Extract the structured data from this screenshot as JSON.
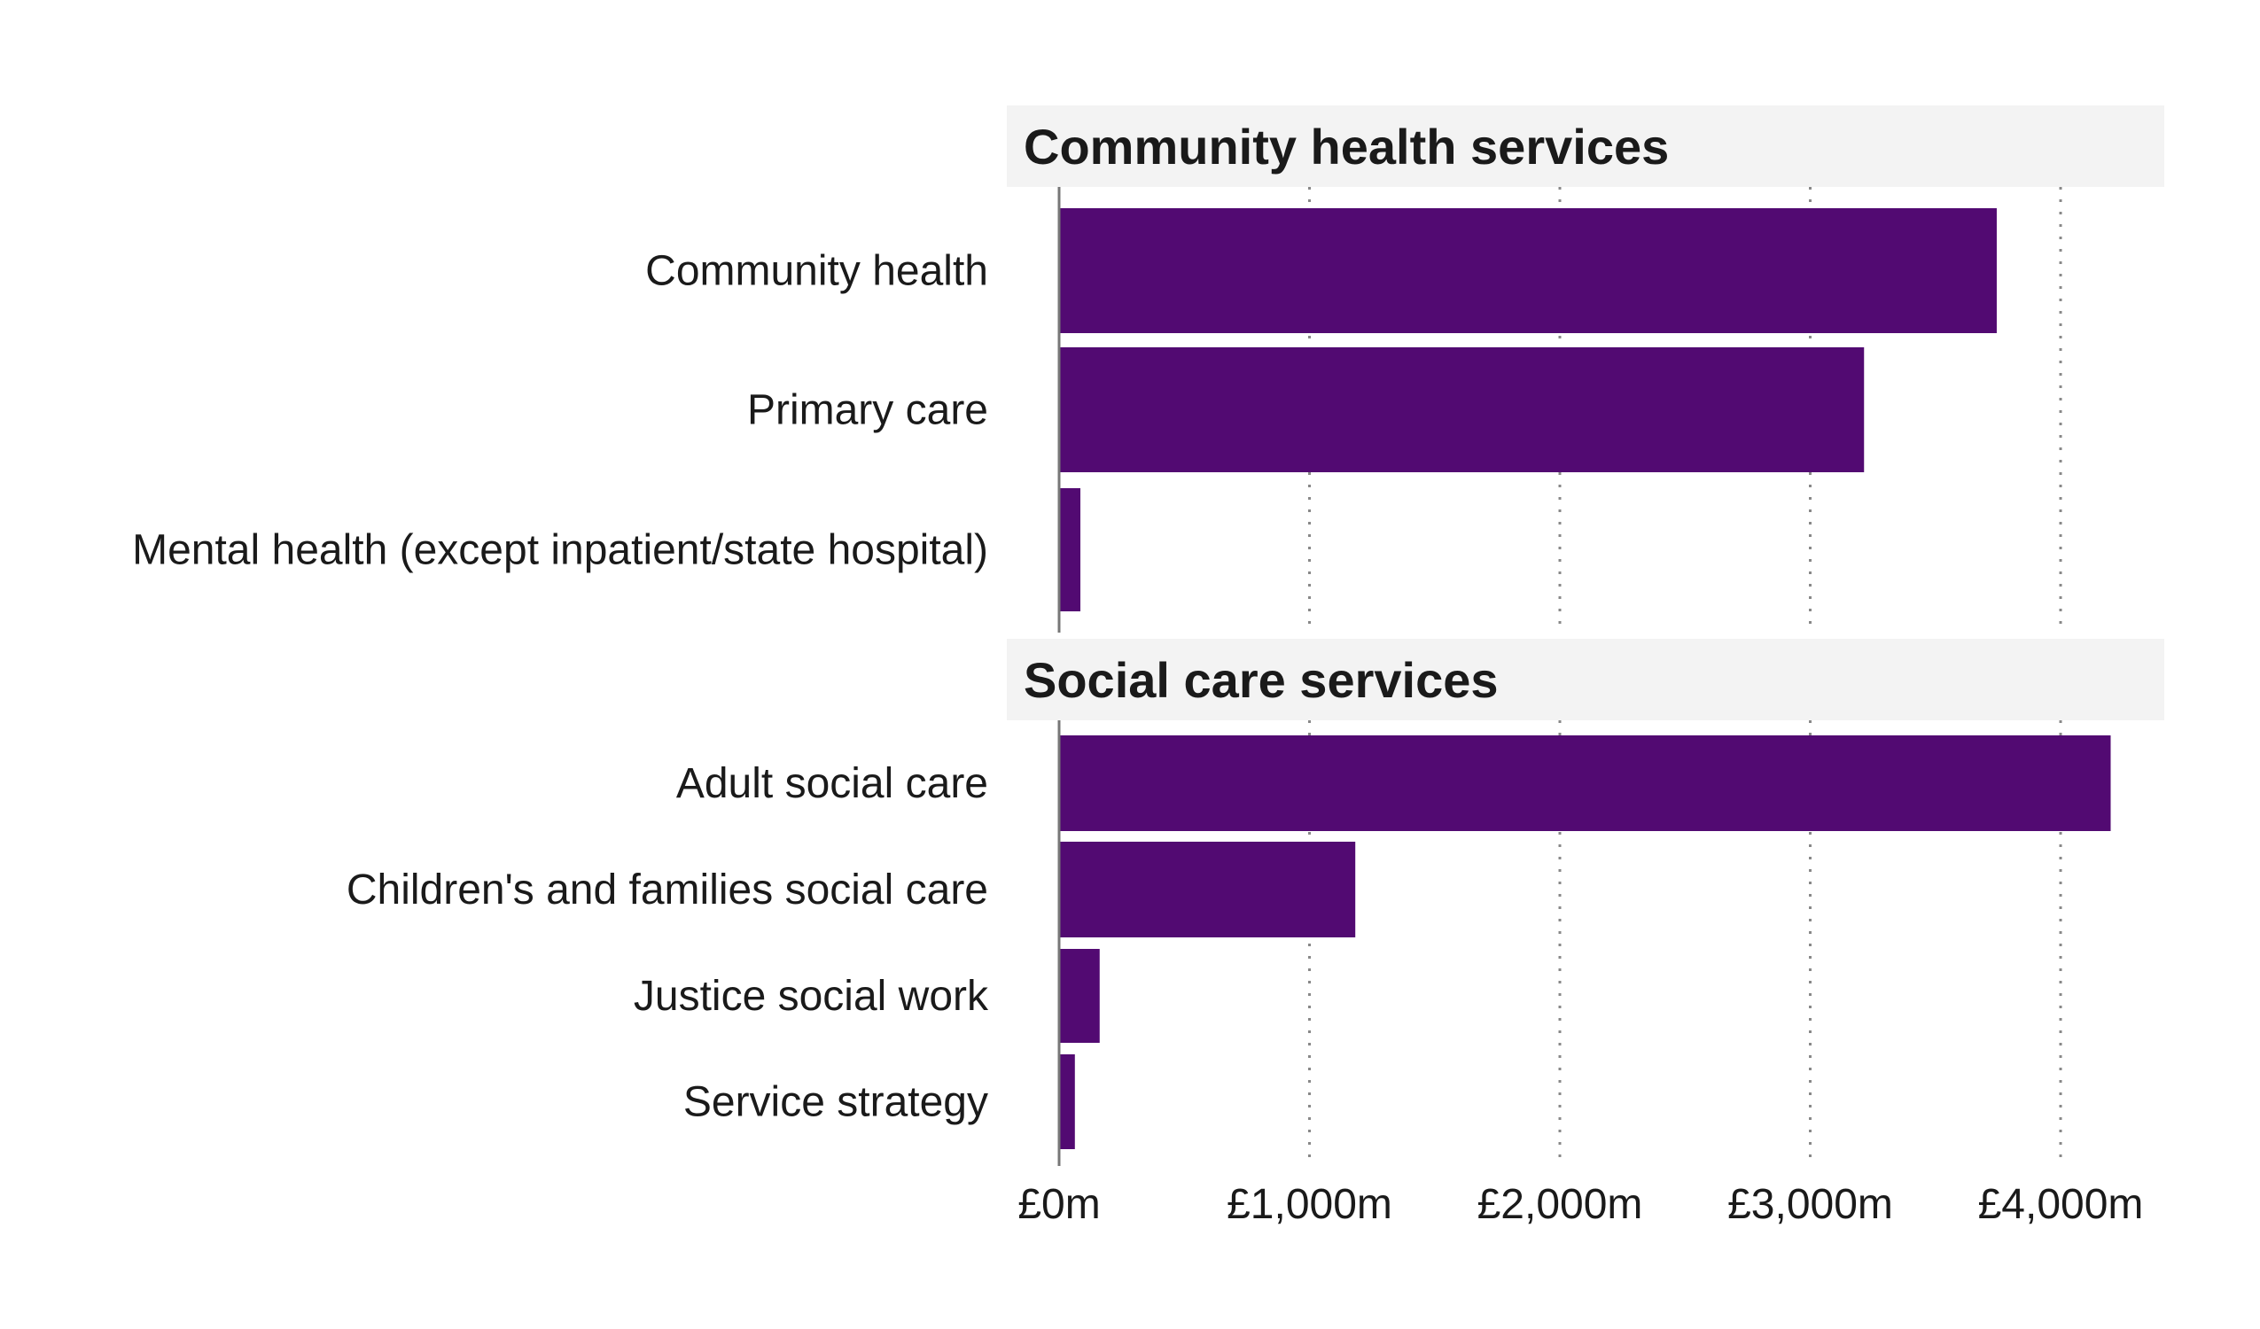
{
  "chart_data": {
    "type": "bar",
    "orientation": "horizontal",
    "xlim": [
      0,
      4400
    ],
    "x_ticks": [
      0,
      1000,
      2000,
      3000,
      4000
    ],
    "x_tick_labels": [
      "£0m",
      "£1,000m",
      "£2,000m",
      "£3,000m",
      "£4,000m"
    ],
    "grid": "vertical dotted",
    "bar_color": "#520a72",
    "panel_bg": "#f3f3f3",
    "panels": [
      {
        "title": "Community health services",
        "categories": [
          "Community health",
          "Primary care",
          "Mental health (except inpatient/state hospital)"
        ],
        "values": [
          3745,
          3215,
          85
        ]
      },
      {
        "title": "Social care services",
        "categories": [
          "Adult social care",
          "Children's and families social care",
          "Justice social work",
          "Service strategy"
        ],
        "values": [
          4200,
          1183,
          162,
          63
        ]
      }
    ]
  }
}
